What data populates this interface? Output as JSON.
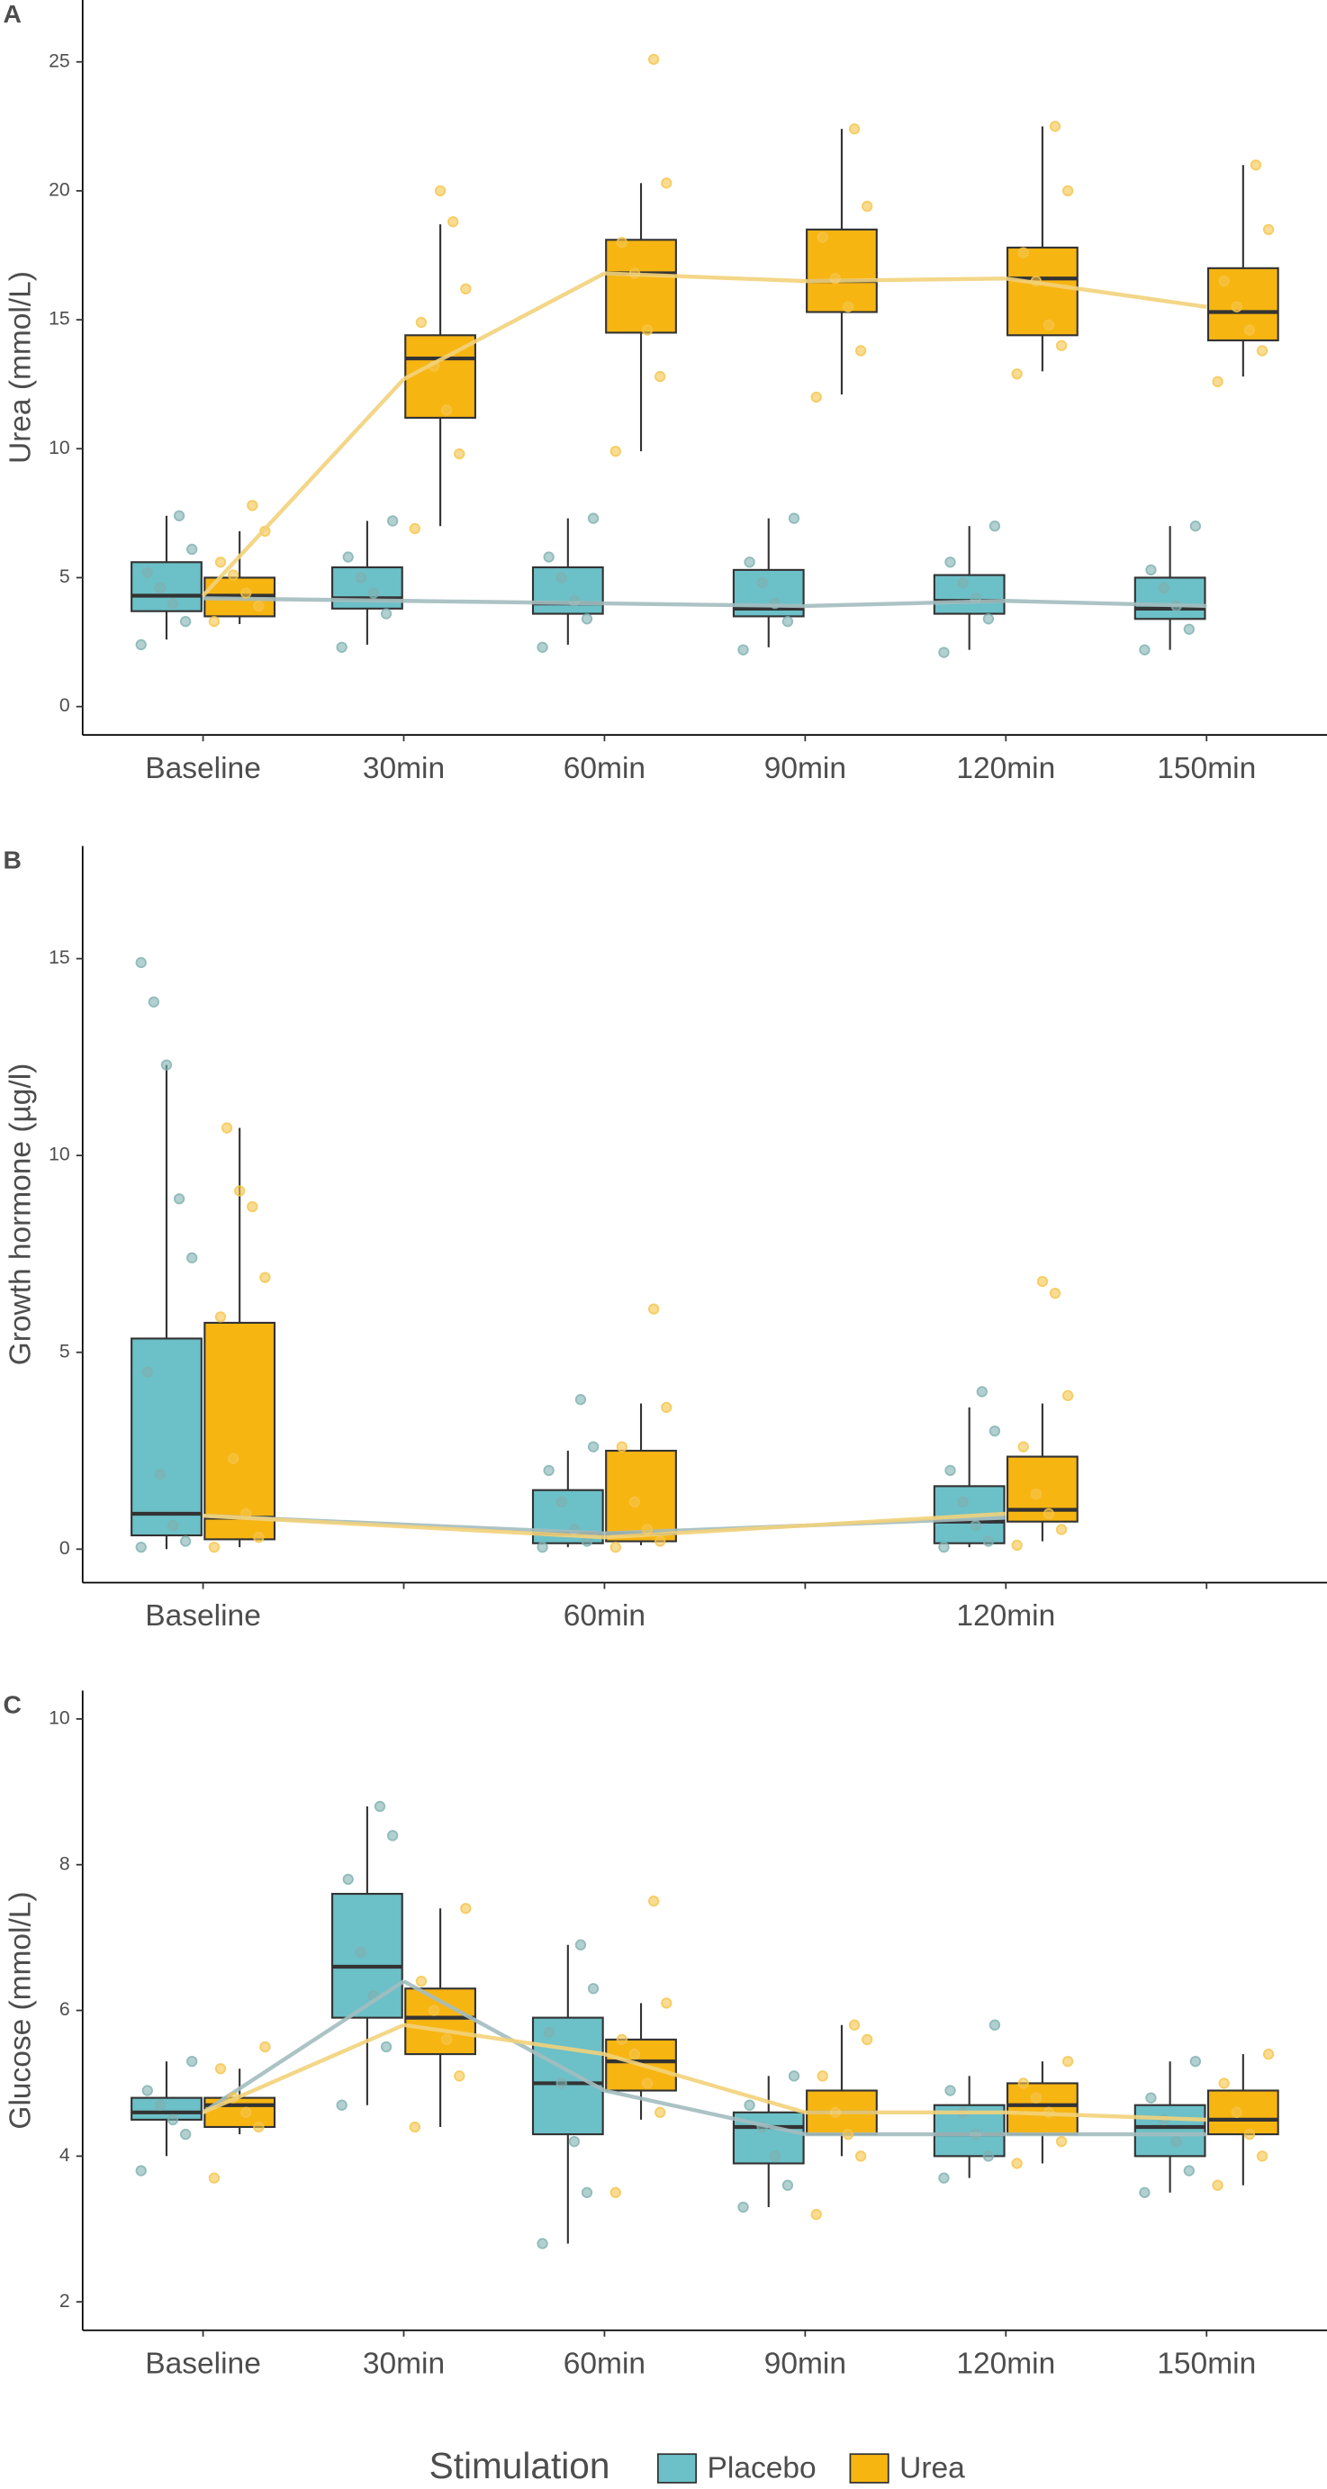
{
  "chart_data": [
    {
      "type": "box",
      "panel": "A",
      "ylabel": "Urea (mmol/L)",
      "categories": [
        "Baseline",
        "30min",
        "60min",
        "90min",
        "120min",
        "150min"
      ],
      "ylim": [
        -1.1,
        27.4
      ],
      "yticks": [
        0,
        5,
        10,
        15,
        20,
        25
      ],
      "series": [
        {
          "name": "Placebo",
          "color": "#6cc0c8",
          "line_color": "#a3bcbf",
          "point_color": "#7fb0b0",
          "boxes": [
            {
              "min": 2.6,
              "q1": 3.7,
              "median": 4.3,
              "q3": 5.6,
              "max": 7.4
            },
            {
              "min": 2.4,
              "q1": 3.8,
              "median": 4.2,
              "q3": 5.4,
              "max": 7.2
            },
            {
              "min": 2.4,
              "q1": 3.6,
              "median": 4.0,
              "q3": 5.4,
              "max": 7.3
            },
            {
              "min": 2.3,
              "q1": 3.5,
              "median": 3.8,
              "q3": 5.3,
              "max": 7.3
            },
            {
              "min": 2.2,
              "q1": 3.6,
              "median": 4.1,
              "q3": 5.1,
              "max": 7.0
            },
            {
              "min": 2.2,
              "q1": 3.4,
              "median": 3.8,
              "q3": 5.0,
              "max": 7.0
            }
          ],
          "means": [
            4.2,
            4.1,
            4.0,
            3.9,
            4.1,
            3.9
          ],
          "points": [
            [
              2.4,
              3.3,
              4.0,
              4.6,
              5.2,
              6.1,
              7.4
            ],
            [
              2.3,
              3.6,
              4.4,
              5.0,
              5.8,
              7.2
            ],
            [
              2.3,
              3.4,
              4.1,
              5.0,
              5.8,
              7.3
            ],
            [
              2.2,
              3.3,
              4.0,
              4.8,
              5.6,
              7.3
            ],
            [
              2.1,
              3.4,
              4.2,
              4.8,
              5.6,
              7.0
            ],
            [
              2.2,
              3.0,
              3.9,
              4.6,
              5.3,
              7.0
            ]
          ]
        },
        {
          "name": "Urea",
          "color": "#f7b512",
          "line_color": "#f2d27a",
          "point_color": "#f5c44a",
          "boxes": [
            {
              "min": 3.2,
              "q1": 3.5,
              "median": 4.3,
              "q3": 5.0,
              "max": 6.8
            },
            {
              "min": 7.0,
              "q1": 11.2,
              "median": 13.5,
              "q3": 14.4,
              "max": 18.7
            },
            {
              "min": 9.9,
              "q1": 14.5,
              "median": 16.8,
              "q3": 18.1,
              "max": 20.3
            },
            {
              "min": 12.1,
              "q1": 15.3,
              "median": 16.5,
              "q3": 18.5,
              "max": 22.4
            },
            {
              "min": 13.0,
              "q1": 14.4,
              "median": 16.6,
              "q3": 17.8,
              "max": 22.5
            },
            {
              "min": 12.8,
              "q1": 14.2,
              "median": 15.3,
              "q3": 17.0,
              "max": 21.0
            }
          ],
          "means": [
            4.3,
            12.7,
            16.8,
            16.5,
            16.6,
            15.5
          ],
          "points": [
            [
              3.3,
              3.9,
              4.4,
              5.1,
              5.6,
              6.8,
              7.8
            ],
            [
              6.9,
              9.8,
              11.5,
              13.2,
              14.9,
              16.2,
              18.8,
              20.0
            ],
            [
              9.9,
              12.8,
              14.6,
              16.8,
              18.0,
              20.3,
              25.1
            ],
            [
              12.0,
              13.8,
              15.5,
              16.6,
              18.2,
              19.4,
              22.4
            ],
            [
              12.9,
              14.0,
              14.8,
              16.5,
              17.6,
              20.0,
              22.5
            ],
            [
              12.6,
              13.8,
              14.6,
              15.5,
              16.5,
              18.5,
              21.0
            ]
          ]
        }
      ]
    },
    {
      "type": "box",
      "panel": "B",
      "ylabel": "Growth hormone (µg/l)",
      "categories": [
        "Baseline",
        null,
        "60min",
        null,
        "120min",
        null
      ],
      "ylim": [
        -0.85,
        17.86
      ],
      "yticks": [
        0,
        5,
        10,
        15
      ],
      "series": [
        {
          "name": "Placebo",
          "color": "#6cc0c8",
          "line_color": "#a3bcbf",
          "point_color": "#7fb0b0",
          "boxes": [
            {
              "min": 0.0,
              "q1": 0.35,
              "median": 0.9,
              "q3": 5.35,
              "max": 12.3
            },
            null,
            {
              "min": 0.05,
              "q1": 0.15,
              "median": 0.4,
              "q3": 1.5,
              "max": 2.5
            },
            null,
            {
              "min": 0.05,
              "q1": 0.15,
              "median": 0.7,
              "q3": 1.6,
              "max": 3.6
            },
            null
          ],
          "means": [
            0.85,
            null,
            0.4,
            null,
            0.8,
            null
          ],
          "points": [
            [
              0.05,
              0.2,
              0.6,
              1.9,
              4.5,
              7.4,
              8.9,
              12.3,
              13.9,
              14.9
            ],
            null,
            [
              0.05,
              0.2,
              0.5,
              1.2,
              2.0,
              2.6,
              3.8
            ],
            null,
            [
              0.05,
              0.2,
              0.6,
              1.2,
              2.0,
              3.0,
              4.0
            ],
            null
          ]
        },
        {
          "name": "Urea",
          "color": "#f7b512",
          "line_color": "#f2d27a",
          "point_color": "#f5c44a",
          "boxes": [
            {
              "min": 0.05,
              "q1": 0.25,
              "median": 0.8,
              "q3": 5.75,
              "max": 10.7
            },
            null,
            {
              "min": 0.1,
              "q1": 0.2,
              "median": 0.4,
              "q3": 2.5,
              "max": 3.7
            },
            null,
            {
              "min": 0.2,
              "q1": 0.7,
              "median": 1.0,
              "q3": 2.35,
              "max": 3.7
            },
            null
          ],
          "means": [
            0.85,
            null,
            0.3,
            null,
            0.9,
            null
          ],
          "points": [
            [
              0.05,
              0.3,
              0.9,
              2.3,
              5.9,
              6.9,
              8.7,
              9.1,
              10.7
            ],
            null,
            [
              0.05,
              0.2,
              0.5,
              1.2,
              2.6,
              3.6,
              6.1
            ],
            null,
            [
              0.1,
              0.5,
              0.9,
              1.4,
              2.6,
              3.9,
              6.5,
              6.8
            ],
            null
          ]
        }
      ]
    },
    {
      "type": "box",
      "panel": "C",
      "ylabel": "Glucose (mmol/L)",
      "categories": [
        "Baseline",
        "30min",
        "60min",
        "90min",
        "120min",
        "150min"
      ],
      "ylim": [
        1.61,
        10.39
      ],
      "yticks": [
        2,
        4,
        6,
        8,
        10
      ],
      "series": [
        {
          "name": "Placebo",
          "color": "#6cc0c8",
          "line_color": "#a3bcbf",
          "point_color": "#7fb0b0",
          "boxes": [
            {
              "min": 4.0,
              "q1": 4.5,
              "median": 4.6,
              "q3": 4.8,
              "max": 5.3
            },
            {
              "min": 4.7,
              "q1": 5.9,
              "median": 6.6,
              "q3": 7.6,
              "max": 8.8
            },
            {
              "min": 2.8,
              "q1": 4.3,
              "median": 5.0,
              "q3": 5.9,
              "max": 6.9
            },
            {
              "min": 3.3,
              "q1": 3.9,
              "median": 4.4,
              "q3": 4.6,
              "max": 5.1
            },
            {
              "min": 3.7,
              "q1": 4.0,
              "median": 4.3,
              "q3": 4.7,
              "max": 5.1
            },
            {
              "min": 3.5,
              "q1": 4.0,
              "median": 4.4,
              "q3": 4.7,
              "max": 5.3
            }
          ],
          "means": [
            4.6,
            6.4,
            4.9,
            4.3,
            4.3,
            4.3
          ],
          "points": [
            [
              3.8,
              4.3,
              4.5,
              4.7,
              4.9,
              5.3
            ],
            [
              4.7,
              5.5,
              6.2,
              6.8,
              7.8,
              8.4,
              8.8
            ],
            [
              2.8,
              3.5,
              4.2,
              5.0,
              5.7,
              6.3,
              6.9
            ],
            [
              3.3,
              3.6,
              4.0,
              4.4,
              4.7,
              5.1
            ],
            [
              3.7,
              4.0,
              4.3,
              4.6,
              4.9,
              5.8
            ],
            [
              3.5,
              3.8,
              4.2,
              4.5,
              4.8,
              5.3
            ]
          ]
        },
        {
          "name": "Urea",
          "color": "#f7b512",
          "line_color": "#f2d27a",
          "point_color": "#f5c44a",
          "boxes": [
            {
              "min": 4.3,
              "q1": 4.4,
              "median": 4.7,
              "q3": 4.8,
              "max": 5.2
            },
            {
              "min": 4.4,
              "q1": 5.4,
              "median": 5.9,
              "q3": 6.3,
              "max": 7.4
            },
            {
              "min": 4.5,
              "q1": 4.9,
              "median": 5.3,
              "q3": 5.6,
              "max": 6.1
            },
            {
              "min": 4.0,
              "q1": 4.3,
              "median": 4.6,
              "q3": 4.9,
              "max": 5.8
            },
            {
              "min": 3.9,
              "q1": 4.3,
              "median": 4.7,
              "q3": 5.0,
              "max": 5.3
            },
            {
              "min": 3.6,
              "q1": 4.3,
              "median": 4.5,
              "q3": 4.9,
              "max": 5.4
            }
          ],
          "means": [
            4.6,
            5.8,
            5.4,
            4.6,
            4.6,
            4.5
          ],
          "points": [
            [
              3.7,
              4.4,
              4.6,
              4.8,
              5.2,
              5.5
            ],
            [
              4.4,
              5.1,
              5.6,
              6.0,
              6.4,
              7.4
            ],
            [
              3.5,
              4.6,
              5.0,
              5.4,
              5.6,
              6.1,
              7.5
            ],
            [
              3.2,
              4.0,
              4.3,
              4.6,
              5.1,
              5.6,
              5.8
            ],
            [
              3.9,
              4.2,
              4.6,
              4.8,
              5.0,
              5.3
            ],
            [
              3.6,
              4.0,
              4.3,
              4.6,
              5.0,
              5.4
            ]
          ]
        }
      ]
    }
  ],
  "legend": {
    "title": "Stimulation"
  }
}
